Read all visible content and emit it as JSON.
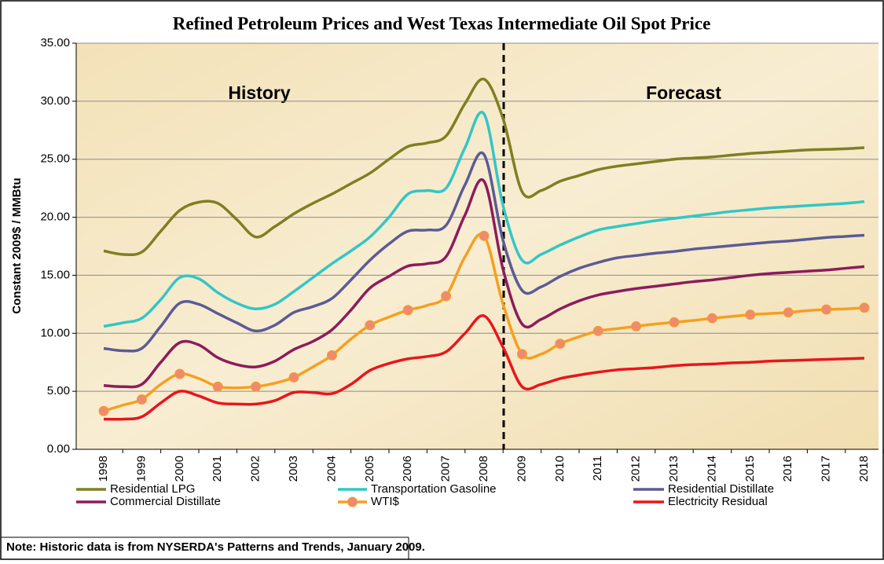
{
  "chart_data": {
    "type": "line",
    "title": "Refined Petroleum Prices and West Texas Intermediate Oil Spot Price",
    "y_label": "Constant 2009$ / MMBtu",
    "annotations": [
      "History",
      "Forecast"
    ],
    "note": "Note: Historic data is from NYSERDA's Patterns and Trends, January 2009.",
    "categories": [
      "1998",
      null,
      "1999",
      null,
      "2000",
      null,
      "2001",
      null,
      "2002",
      null,
      "2003",
      null,
      "2004",
      null,
      "2005",
      null,
      "2006",
      null,
      "2007",
      null,
      "2008",
      null,
      "2009",
      null,
      "2010",
      null,
      "2011",
      null,
      "2012",
      null,
      "2013",
      null,
      "2014",
      null,
      "2015",
      null,
      "2016",
      null,
      "2017",
      null,
      "2018"
    ],
    "ylim": [
      0,
      35
    ],
    "yticks": [
      {
        "value": 0,
        "label": "0.00"
      },
      {
        "value": 5,
        "label": "5.00"
      },
      {
        "value": 10,
        "label": "10.00"
      },
      {
        "value": 15,
        "label": "15.00"
      },
      {
        "value": 20,
        "label": "20.00"
      },
      {
        "value": 25,
        "label": "25.00"
      },
      {
        "value": 30,
        "label": "30.00"
      },
      {
        "value": 35,
        "label": "35.00"
      }
    ],
    "grid": true,
    "series": [
      {
        "name": "Residential LPG",
        "color": "#7f7f22",
        "values": [
          17.1,
          16.8,
          17.0,
          18.8,
          20.6,
          21.3,
          21.2,
          19.8,
          18.3,
          19.2,
          20.3,
          21.2,
          22.0,
          22.9,
          23.8,
          25.0,
          26.1,
          26.4,
          27.0,
          29.8,
          31.9,
          28.5,
          22.2,
          22.3,
          23.1,
          23.6,
          24.1,
          24.4,
          24.6,
          24.8,
          25.0,
          25.1,
          25.2,
          25.35,
          25.5,
          25.6,
          25.7,
          25.8,
          25.85,
          25.9,
          26.0
        ]
      },
      {
        "name": "Transportation Gasoline",
        "color": "#33c6c6",
        "values": [
          10.6,
          10.9,
          11.3,
          12.9,
          14.8,
          14.7,
          13.5,
          12.6,
          12.1,
          12.5,
          13.6,
          14.8,
          16.0,
          17.1,
          18.3,
          20.0,
          22.0,
          22.3,
          22.5,
          26.0,
          28.9,
          21.0,
          16.3,
          16.8,
          17.6,
          18.3,
          18.9,
          19.2,
          19.45,
          19.7,
          19.9,
          20.1,
          20.3,
          20.5,
          20.65,
          20.8,
          20.9,
          21.0,
          21.1,
          21.2,
          21.35
        ]
      },
      {
        "name": "Residential Distillate",
        "color": "#5b5b96",
        "values": [
          8.7,
          8.5,
          8.7,
          10.6,
          12.6,
          12.5,
          11.7,
          10.9,
          10.2,
          10.7,
          11.8,
          12.3,
          13.0,
          14.6,
          16.3,
          17.7,
          18.8,
          18.9,
          19.3,
          22.8,
          25.4,
          18.0,
          13.7,
          14.0,
          14.9,
          15.6,
          16.1,
          16.5,
          16.7,
          16.9,
          17.05,
          17.25,
          17.4,
          17.55,
          17.7,
          17.85,
          17.95,
          18.1,
          18.25,
          18.35,
          18.45
        ]
      },
      {
        "name": "Commercial Distillate",
        "color": "#8c1c5c",
        "values": [
          5.5,
          5.4,
          5.6,
          7.5,
          9.2,
          9.0,
          7.9,
          7.3,
          7.1,
          7.6,
          8.6,
          9.3,
          10.3,
          12.0,
          13.9,
          14.9,
          15.8,
          16.0,
          16.6,
          20.2,
          23.1,
          15.5,
          10.8,
          11.2,
          12.1,
          12.8,
          13.3,
          13.6,
          13.85,
          14.05,
          14.25,
          14.45,
          14.6,
          14.8,
          15.0,
          15.15,
          15.25,
          15.35,
          15.45,
          15.6,
          15.75
        ]
      },
      {
        "name": "WTI$",
        "color": "#f5a020",
        "marker_color": "#f08a6e",
        "markers": true,
        "values": [
          3.3,
          3.8,
          4.3,
          5.6,
          6.5,
          6.1,
          5.4,
          5.3,
          5.4,
          5.7,
          6.2,
          7.1,
          8.1,
          9.5,
          10.7,
          11.4,
          12.0,
          12.4,
          13.2,
          16.6,
          18.4,
          12.5,
          8.2,
          8.2,
          9.1,
          9.7,
          10.2,
          10.4,
          10.6,
          10.8,
          10.95,
          11.1,
          11.3,
          11.45,
          11.6,
          11.7,
          11.8,
          11.95,
          12.05,
          12.1,
          12.2
        ]
      },
      {
        "name": "Electricity Residual",
        "color": "#e8161c",
        "values": [
          2.6,
          2.6,
          2.8,
          4.0,
          5.0,
          4.6,
          4.0,
          3.9,
          3.9,
          4.2,
          4.9,
          4.9,
          4.8,
          5.6,
          6.8,
          7.4,
          7.8,
          8.0,
          8.4,
          10.0,
          11.5,
          8.8,
          5.4,
          5.6,
          6.1,
          6.4,
          6.65,
          6.85,
          6.95,
          7.05,
          7.2,
          7.3,
          7.35,
          7.45,
          7.5,
          7.6,
          7.65,
          7.7,
          7.75,
          7.8,
          7.85
        ]
      }
    ]
  }
}
